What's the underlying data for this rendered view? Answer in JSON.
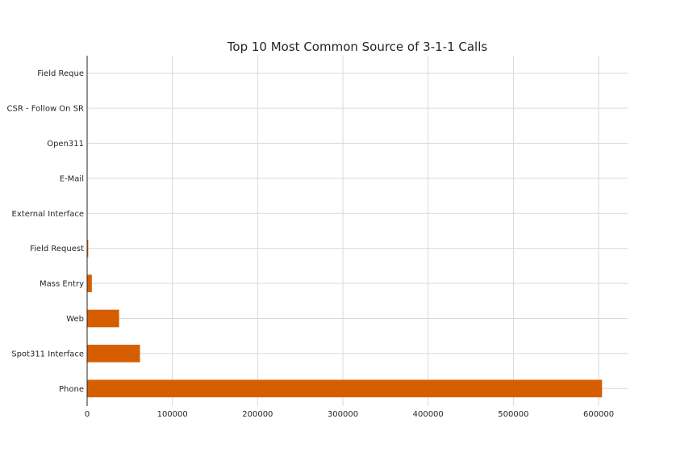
{
  "chart_data": {
    "type": "bar",
    "orientation": "horizontal",
    "title": "Top 10 Most Common Source of 3-1-1 Calls",
    "xlabel": "",
    "ylabel": "",
    "categories": [
      "Phone",
      "Spot311 Interface",
      "Web",
      "Mass Entry",
      "Field Request",
      "External Interface",
      "E-Mail",
      "Open311",
      "CSR - Follow On SR",
      "Field Reque"
    ],
    "values": [
      604000,
      62000,
      37500,
      5500,
      1300,
      150,
      100,
      60,
      30,
      10
    ],
    "xlim": [
      0,
      634000
    ],
    "xticks": [
      0,
      100000,
      200000,
      300000,
      400000,
      500000,
      600000
    ],
    "xtick_labels": [
      "0",
      "100000",
      "200000",
      "300000",
      "400000",
      "500000",
      "600000"
    ],
    "grid": true,
    "bar_color": "#d55e00"
  }
}
